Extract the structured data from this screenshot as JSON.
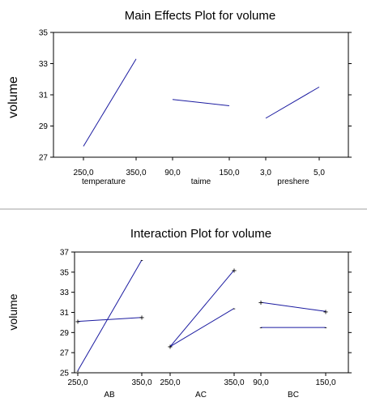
{
  "chart_data": [
    {
      "type": "line",
      "title": "Main Effects Plot for volume",
      "ylabel": "volume",
      "ylim": [
        27,
        35
      ],
      "yticks": [
        "27",
        "29",
        "31",
        "33",
        "35"
      ],
      "factors": [
        {
          "name": "temperature",
          "levels": [
            "250,0",
            "350,0"
          ],
          "values": [
            27.7,
            33.3
          ]
        },
        {
          "name": "taime",
          "levels": [
            "90,0",
            "150,0"
          ],
          "values": [
            30.7,
            30.3
          ]
        },
        {
          "name": "preshere",
          "levels": [
            "3,0",
            "5,0"
          ],
          "values": [
            29.5,
            31.5
          ]
        }
      ]
    },
    {
      "type": "line",
      "title": "Interaction Plot for volume",
      "ylabel": "volume",
      "ylim": [
        25,
        37
      ],
      "yticks": [
        "25",
        "27",
        "29",
        "31",
        "33",
        "35",
        "37"
      ],
      "factors": [
        {
          "name": "AB",
          "levels": [
            "250,0",
            "350,0"
          ],
          "series": [
            {
              "symbol": "-",
              "values": [
                25.2,
                36.2
              ]
            },
            {
              "symbol": "+",
              "values": [
                30.1,
                30.5
              ]
            }
          ]
        },
        {
          "name": "AC",
          "levels": [
            "250,0",
            "350,0"
          ],
          "series": [
            {
              "symbol": "-",
              "values": [
                27.6,
                31.4
              ]
            },
            {
              "symbol": "+",
              "values": [
                27.6,
                35.2
              ]
            }
          ]
        },
        {
          "name": "BC",
          "levels": [
            "90,0",
            "150,0"
          ],
          "series": [
            {
              "symbol": "-",
              "values": [
                29.5,
                29.5
              ]
            },
            {
              "symbol": "+",
              "values": [
                32.0,
                31.1
              ]
            }
          ]
        }
      ]
    }
  ]
}
